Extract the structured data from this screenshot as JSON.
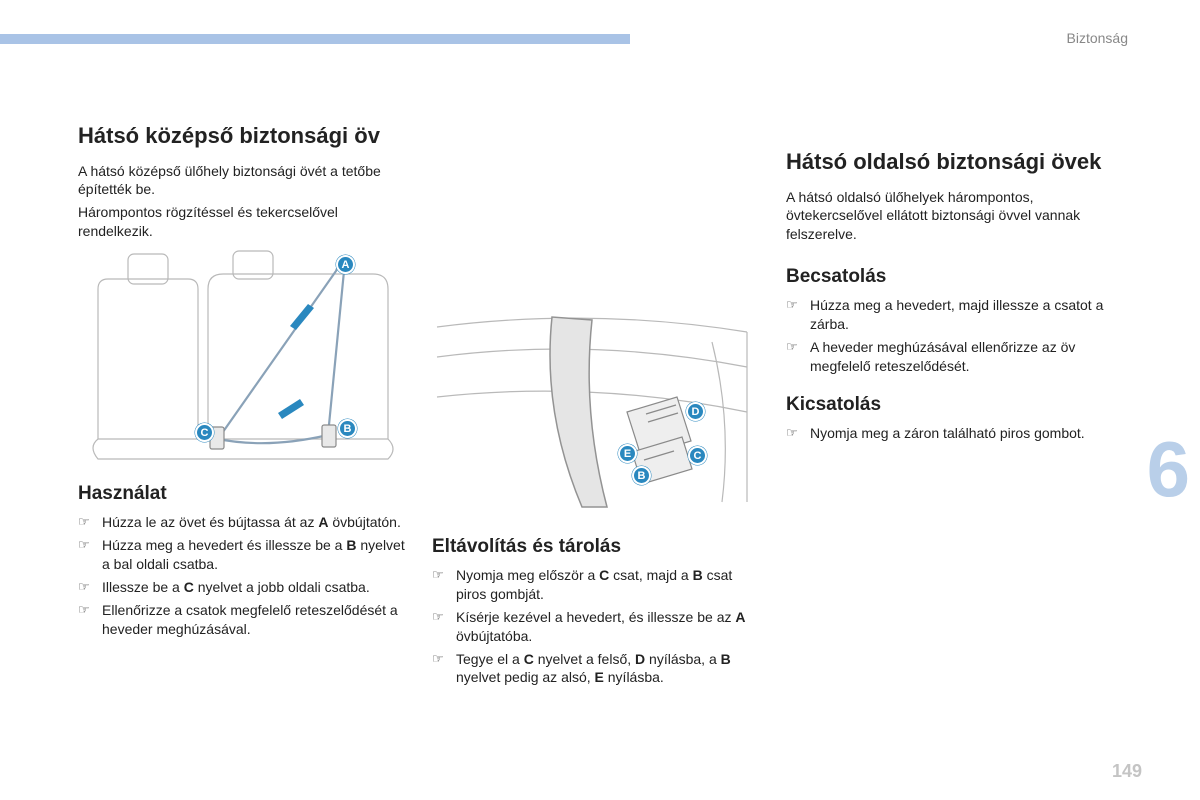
{
  "header": {
    "section_label": "Biztonság",
    "page_number": "149",
    "chapter_number": "6",
    "bar_color": "#a9c3e6"
  },
  "col1": {
    "title": "Hátsó középső biztonsági öv",
    "intro1": "A hátsó középső ülőhely biztonsági övét a tetőbe építették be.",
    "intro2": "Hárompontos rögzítéssel és tekercselővel rendelkezik.",
    "figure_markers": {
      "A": "A",
      "B": "B",
      "C": "C"
    },
    "subheading": "Használat",
    "steps": [
      "Húzza le az övet és bújtassa át az <b>A</b> övbújtatón.",
      "Húzza meg a hevedert és illessze be a <b>B</b> nyelvet a bal oldali csatba.",
      "Illessze be a <b>C</b> nyelvet a jobb oldali csatba.",
      "Ellenőrizze a csatok megfelelő reteszelődését a heveder meghúzásával."
    ]
  },
  "col2": {
    "figure_markers": {
      "B": "B",
      "C": "C",
      "D": "D",
      "E": "E"
    },
    "subheading": "Eltávolítás és tárolás",
    "steps": [
      "Nyomja meg először a <b>C</b> csat, majd a <b>B</b> csat piros gombját.",
      "Kísérje kezével a hevedert, és illessze be az <b>A</b> övbújtatóba.",
      "Tegye el a <b>C</b> nyelvet a felső, <b>D</b> nyílásba, a <b>B</b> nyelvet pedig az alsó, <b>E</b> nyílásba."
    ]
  },
  "col3": {
    "title": "Hátsó oldalsó biztonsági övek",
    "intro": "A hátsó oldalsó ülőhelyek hárompontos, övtekercselővel ellátott biztonsági övvel vannak felszerelve.",
    "sub1": "Becsatolás",
    "steps1": [
      "Húzza meg a hevedert, majd illessze a csatot a zárba.",
      "A heveder meghúzásával ellenőrizze az öv megfelelő reteszelődését."
    ],
    "sub2": "Kicsatolás",
    "steps2": [
      "Nyomja meg a záron található piros gombot."
    ]
  },
  "style": {
    "marker_bg": "#2a88bf",
    "marker_fg": "#ffffff",
    "body_font_size": 14,
    "h2_font_size": 22,
    "h3_font_size": 19,
    "chapter_color": "#b9cfe9",
    "pagenum_color": "#c4c4c4",
    "section_color": "#888888"
  }
}
